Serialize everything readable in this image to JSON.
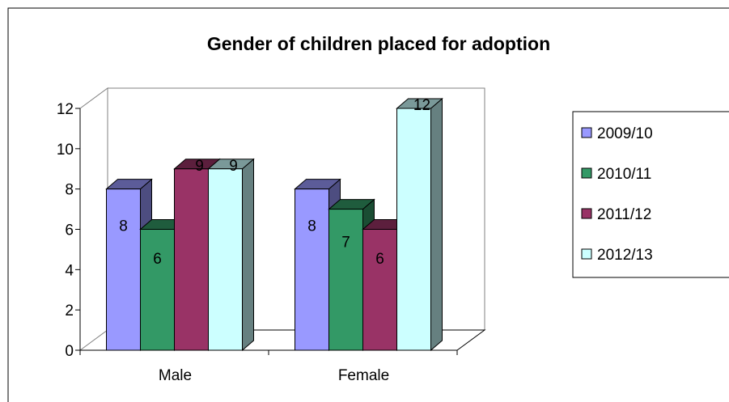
{
  "chart_data": {
    "type": "bar",
    "title": "Gender of children placed for adoption",
    "xlabel": "",
    "ylabel": "",
    "categories": [
      "Male",
      "Female"
    ],
    "ylim": [
      0,
      12
    ],
    "yticks": [
      0,
      2,
      4,
      6,
      8,
      10,
      12
    ],
    "grid": false,
    "legend_position": "right",
    "series": [
      {
        "name": "2009/10",
        "values": [
          8,
          8
        ],
        "color": "#9999ff"
      },
      {
        "name": "2010/11",
        "values": [
          6,
          7
        ],
        "color": "#339966"
      },
      {
        "name": "2011/12",
        "values": [
          9,
          6
        ],
        "color": "#993366"
      },
      {
        "name": "2012/13",
        "values": [
          9,
          12
        ],
        "color": "#ccffff"
      }
    ]
  }
}
